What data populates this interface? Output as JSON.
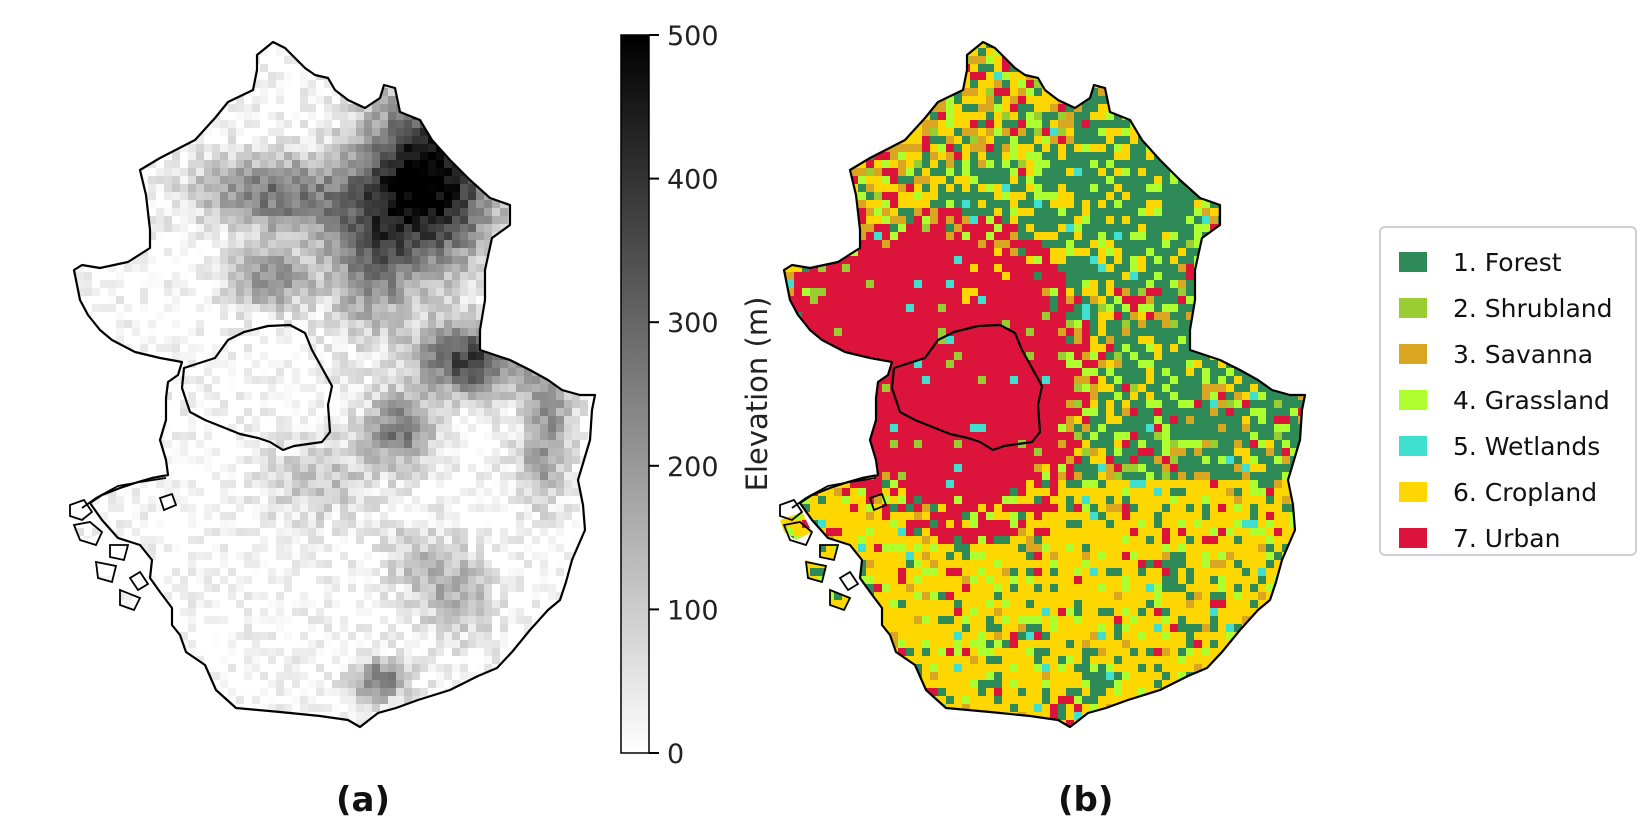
{
  "panels": [
    {
      "label": "(a)"
    },
    {
      "label": "(b)"
    }
  ],
  "colorbar": {
    "title": "Elevation (m)",
    "min": 0,
    "max": 500,
    "ticks": [
      "0",
      "100",
      "200",
      "300",
      "400",
      "500"
    ],
    "colormap": [
      "#ffffff",
      "#000000"
    ]
  },
  "legend": {
    "items": [
      {
        "label": "1. Forest",
        "color": "#2e8b57"
      },
      {
        "label": "2. Shrubland",
        "color": "#9acd32"
      },
      {
        "label": "3. Savanna",
        "color": "#daa520"
      },
      {
        "label": "4. Grassland",
        "color": "#adff2f"
      },
      {
        "label": "5. Wetlands",
        "color": "#40e0d0"
      },
      {
        "label": "6. Cropland",
        "color": "#ffd700"
      },
      {
        "label": "7. Urban",
        "color": "#dc143c"
      }
    ]
  }
}
